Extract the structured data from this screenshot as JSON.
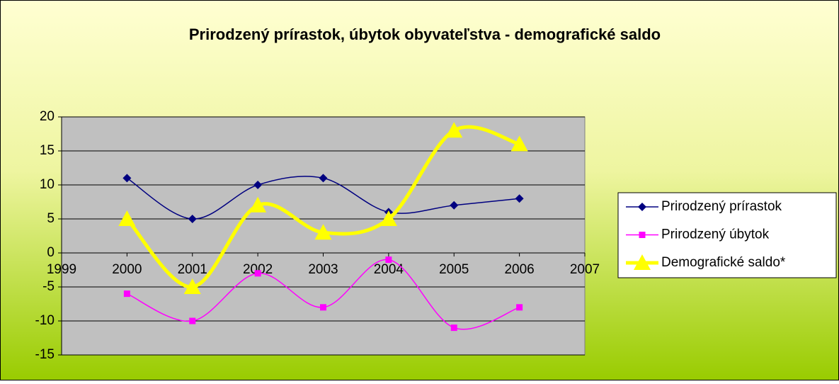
{
  "chart_data": {
    "type": "line",
    "title": "Prirodzený prírastok, úbytok obyvateľstva  - demografické saldo",
    "x": [
      2000,
      2001,
      2002,
      2003,
      2004,
      2005,
      2006
    ],
    "series": [
      {
        "name": "Prirodzený prírastok",
        "color": "#000080",
        "marker": "diamond",
        "values": [
          11,
          5,
          10,
          11,
          6,
          7,
          8
        ]
      },
      {
        "name": "Prirodzený úbytok",
        "color": "#ff00ff",
        "marker": "square",
        "values": [
          -6,
          -10,
          -3,
          -8,
          -1,
          -11,
          -8
        ]
      },
      {
        "name": "Demografické saldo*",
        "color": "#ffff00",
        "marker": "triangle",
        "values": [
          5,
          -5,
          7,
          3,
          5,
          18,
          16
        ]
      }
    ],
    "xlim": [
      1999,
      2007
    ],
    "xticks": [
      1999,
      2000,
      2001,
      2002,
      2003,
      2004,
      2005,
      2006,
      2007
    ],
    "ylim": [
      -15,
      20
    ],
    "yticks": [
      -15,
      -10,
      -5,
      0,
      5,
      10,
      15,
      20
    ],
    "grid": true,
    "smooth": true,
    "legend": "right"
  }
}
